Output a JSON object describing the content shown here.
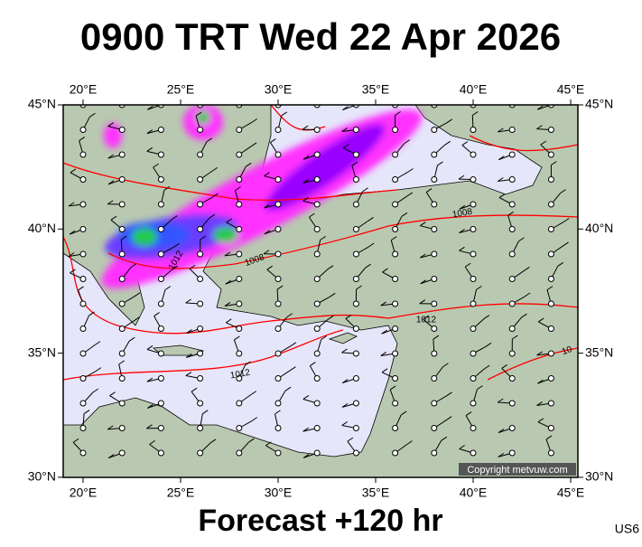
{
  "header": {
    "title": "0900 TRT Wed 22 Apr 2026"
  },
  "map": {
    "lon_labels": [
      "20°E",
      "25°E",
      "30°E",
      "35°E",
      "40°E",
      "45°E"
    ],
    "lat_labels": [
      "45°N",
      "40°N",
      "35°N",
      "30°N"
    ],
    "isobar_labels": [
      "1012",
      "1008",
      "1008",
      "1012",
      "1012",
      "10"
    ],
    "copyright": "Copyright metvuw.com"
  },
  "footer": {
    "forecast": "Forecast +120 hr",
    "code": "US6"
  }
}
